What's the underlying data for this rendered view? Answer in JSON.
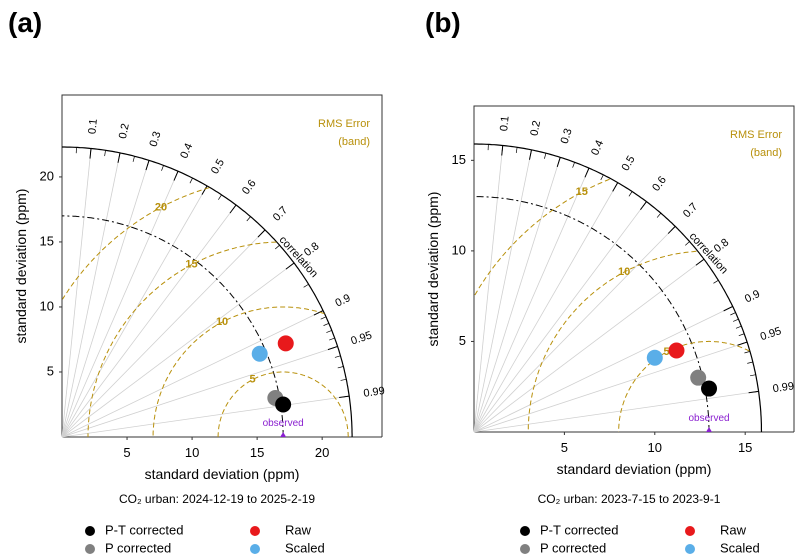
{
  "chart_data": [
    {
      "type": "taylor",
      "panel_label": "(a)",
      "xlabel": "standard deviation  (ppm)",
      "ylabel": "standard deviation  (ppm)",
      "caption": "CO₂ urban: 2024-12-19 to 2025-2-19",
      "xlim": [
        0,
        24.6
      ],
      "ylim": [
        0,
        26.3
      ],
      "xticks": [
        5,
        10,
        15,
        20
      ],
      "yticks": [
        5,
        10,
        15,
        20
      ],
      "sd_max": 22.3,
      "correlation_label": "correlation",
      "correlation_ticks": [
        0.1,
        0.2,
        0.3,
        0.4,
        0.5,
        0.6,
        0.7,
        0.8,
        0.9,
        0.95,
        0.99
      ],
      "rms_label": "RMS Error",
      "rms_sublabel": "(band)",
      "rms_levels": [
        5,
        10,
        15,
        20
      ],
      "observed": {
        "label": "observed",
        "value": 17
      },
      "series": [
        {
          "name": "P-T corrected",
          "color": "#000000",
          "x": [
            17
          ],
          "values": [
            2.5
          ]
        },
        {
          "name": "P corrected",
          "color": "#808080",
          "x": [
            16.4
          ],
          "values": [
            3.0
          ]
        },
        {
          "name": "Raw",
          "color": "#e8191c",
          "x": [
            17.2
          ],
          "values": [
            7.2
          ]
        },
        {
          "name": "Scaled",
          "color": "#5aaee8",
          "x": [
            15.2
          ],
          "values": [
            6.4
          ]
        }
      ]
    },
    {
      "type": "taylor",
      "panel_label": "(b)",
      "xlabel": "standard deviation  (ppm)",
      "ylabel": "standard deviation  (ppm)",
      "caption": "CO₂ urban: 2023-7-15 to 2023-9-1",
      "xlim": [
        0,
        17.7
      ],
      "ylim": [
        0,
        18
      ],
      "xticks": [
        5,
        10,
        15
      ],
      "yticks": [
        5,
        10,
        15
      ],
      "sd_max": 15.9,
      "correlation_label": "correlation",
      "correlation_ticks": [
        0.1,
        0.2,
        0.3,
        0.4,
        0.5,
        0.6,
        0.7,
        0.8,
        0.9,
        0.95,
        0.99
      ],
      "rms_label": "RMS Error",
      "rms_sublabel": "(band)",
      "rms_levels": [
        5,
        10,
        15
      ],
      "observed": {
        "label": "observed",
        "value": 13
      },
      "series": [
        {
          "name": "P-T corrected",
          "color": "#000000",
          "x": [
            13
          ],
          "values": [
            2.4
          ]
        },
        {
          "name": "P corrected",
          "color": "#808080",
          "x": [
            12.4
          ],
          "values": [
            3.0
          ]
        },
        {
          "name": "Raw",
          "color": "#e8191c",
          "x": [
            11.2
          ],
          "values": [
            4.5
          ]
        },
        {
          "name": "Scaled",
          "color": "#5aaee8",
          "x": [
            10
          ],
          "values": [
            4.1
          ]
        }
      ]
    }
  ]
}
